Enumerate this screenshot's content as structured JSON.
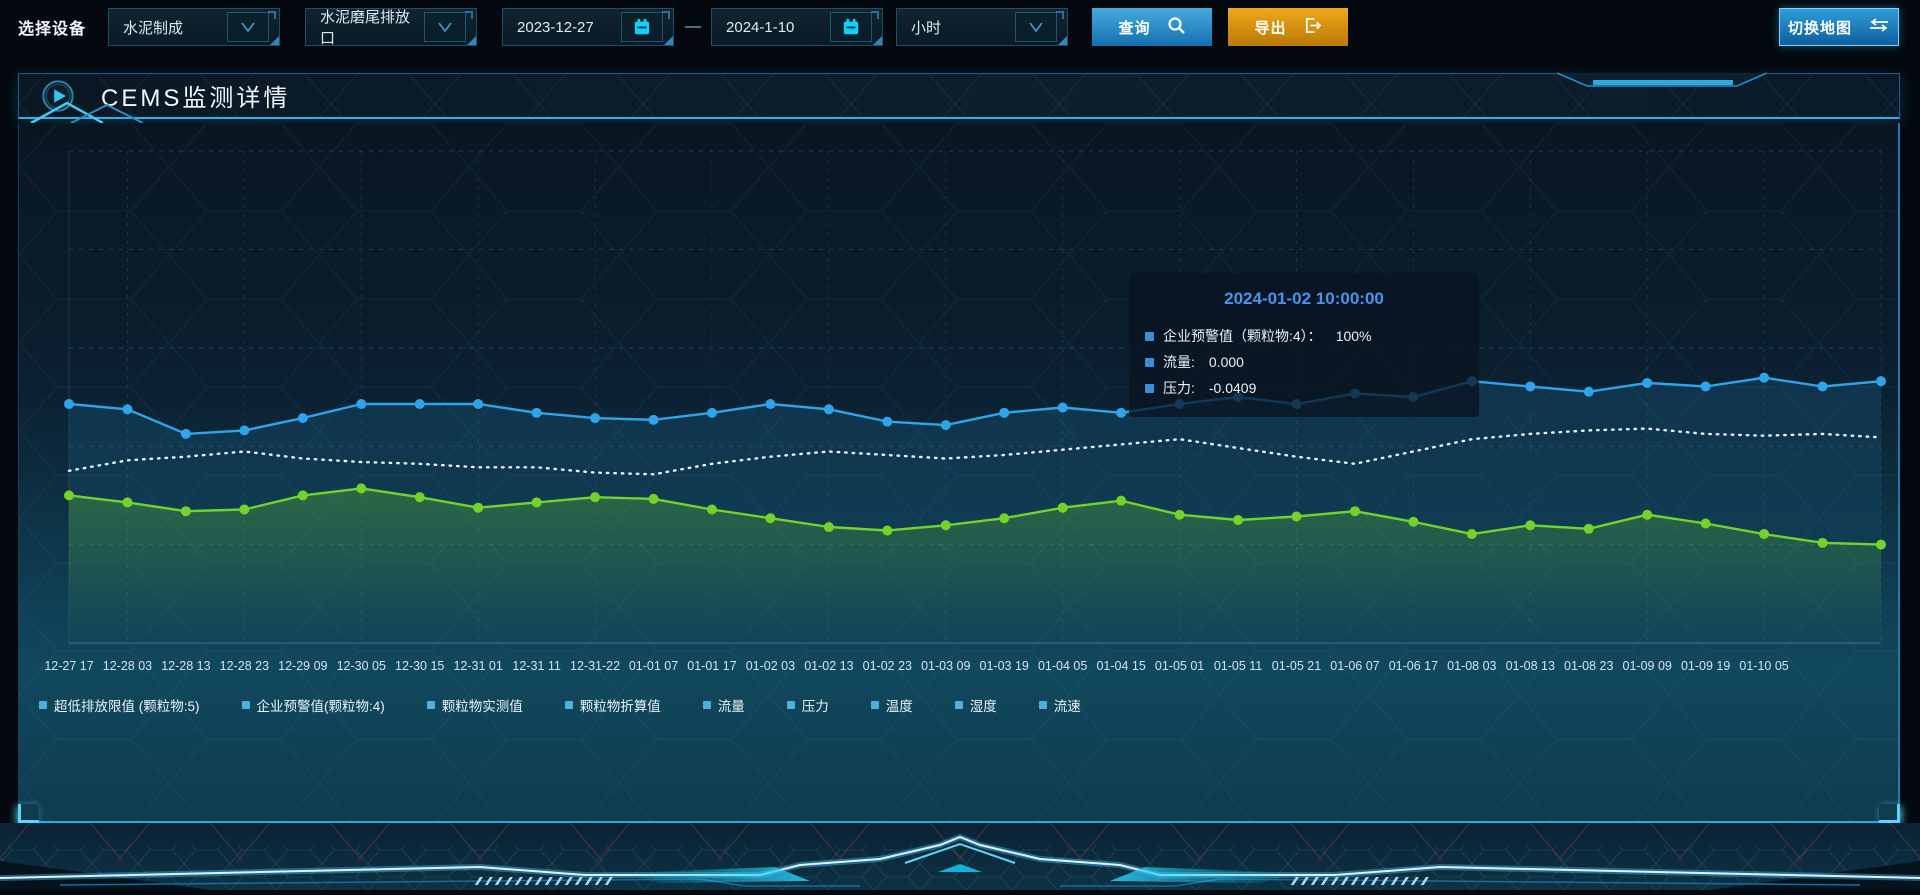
{
  "toolbar": {
    "device_label": "选择设备",
    "device_select": "水泥制成",
    "outlet_select": "水泥磨尾排放口",
    "date_start": "2023-12-27",
    "range_separator": "—",
    "date_end": "2024-1-10",
    "interval_select": "小时",
    "query_label": "查询",
    "export_label": "导出",
    "switch_map_label": "切换地图"
  },
  "panel": {
    "title": "CEMS监测详情"
  },
  "tooltip": {
    "title": "2024-01-02 10:00:00",
    "items": [
      {
        "name": "企业预警值（颗粒物:4）：",
        "value": "100%"
      },
      {
        "name": "流量:",
        "value": "0.000"
      },
      {
        "name": "压力:",
        "value": "-0.0409"
      }
    ]
  },
  "chart_data": {
    "type": "line",
    "title": "",
    "xlabel": "",
    "ylabel": "",
    "ylim": [
      0,
      140
    ],
    "y_axis_labels_visible": false,
    "grid": true,
    "legend_position": "bottom",
    "x_labels": [
      "12-27 17",
      "12-28 03",
      "12-28 13",
      "12-28 23",
      "12-29 09",
      "12-30 05",
      "12-30 15",
      "12-31 01",
      "12-31 11",
      "12-31-22",
      "01-01 07",
      "01-01 17",
      "01-02 03",
      "01-02 13",
      "01-02 23",
      "01-03 09",
      "01-03 19",
      "01-04 05",
      "01-04 15",
      "01-05 01",
      "01-05 11",
      "01-05 21",
      "01-06 07",
      "01-06 17",
      "01-08 03",
      "01-08 13",
      "01-08 23",
      "01-09 09",
      "01-09 19",
      "01-10 05"
    ],
    "legend_items": [
      "超低排放限值 (颗粒物:5)",
      "企业预警值(颗粒物:4)",
      "颗粒物实测值",
      "颗粒物折算值",
      "流量",
      "压力",
      "温度",
      "湿度",
      "流速"
    ],
    "series": [
      {
        "name": "企业预警值(颗粒物:4)",
        "color": "#2ea4ea",
        "style": "solid",
        "markers": true,
        "area_color": "#2896d2",
        "area_opacity": 0.18,
        "values": [
          68,
          66.5,
          59.5,
          60.5,
          64,
          68,
          68,
          68,
          65.5,
          64,
          63.5,
          65.5,
          68,
          66.5,
          63,
          62,
          65.5,
          67,
          65.5,
          68,
          70,
          68,
          71,
          70,
          74.5,
          73,
          71.5,
          74,
          73,
          75.5,
          73,
          74.5
        ]
      },
      {
        "name": "流量",
        "color": "#e9f4f6",
        "style": "dotted",
        "markers": false,
        "area_color": null,
        "area_opacity": 0,
        "values": [
          49,
          52,
          53,
          54.5,
          52.5,
          51.5,
          51,
          50,
          50,
          48.5,
          48,
          51,
          53,
          54.5,
          53.5,
          52.5,
          53.5,
          55,
          56.5,
          58,
          55.5,
          53,
          51,
          54.5,
          58,
          59.5,
          60.5,
          61,
          59.5,
          59,
          59.5,
          58.5
        ]
      },
      {
        "name": "压力",
        "color": "#74d32a",
        "style": "solid",
        "markers": true,
        "area_color": "#6ed230",
        "area_opacity": 0.3,
        "values": [
          42,
          40,
          37.5,
          38,
          42,
          44,
          41.5,
          38.5,
          40,
          41.5,
          41,
          38,
          35.5,
          33,
          32,
          33.5,
          35.5,
          38.5,
          40.5,
          36.5,
          35,
          36,
          37.5,
          34.5,
          31,
          33.5,
          32.5,
          36.5,
          34,
          31,
          28.5,
          28
        ]
      }
    ]
  },
  "colors": {
    "accent_cyan": "#2fc0f0",
    "query_button": "#1c7ab8",
    "export_button": "#d98f0e",
    "series_blue": "#2ea4ea",
    "series_white": "#e9f4f6",
    "series_green": "#74d32a",
    "tooltip_title": "#4a94ec"
  }
}
